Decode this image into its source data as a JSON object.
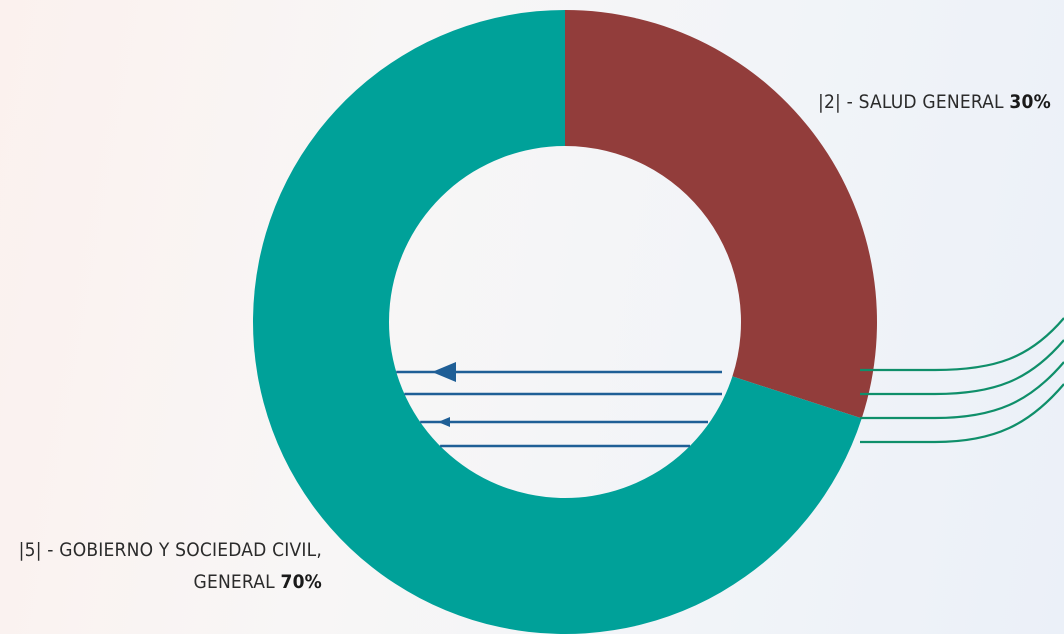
{
  "chart_data": {
    "type": "pie",
    "categories": [
      "[2] - Salud general",
      "[5] - Gobierno y sociedad civil, general"
    ],
    "values": [
      30,
      70
    ],
    "colors": [
      "#923d3b",
      "#00a199"
    ],
    "labels": [
      {
        "prefix": "|2| - SALUD GENERAL",
        "value": "30%"
      },
      {
        "prefix_line1": "|5| - GOBIERNO Y SOCIEDAD CIVIL,",
        "prefix_line2": "GENERAL",
        "value": "70%"
      }
    ],
    "title": "",
    "legend": "none",
    "donut": true
  },
  "decor": {
    "flow_lines_color": "#0f8f6a",
    "arrow_lines_color": "#1f5f96"
  }
}
